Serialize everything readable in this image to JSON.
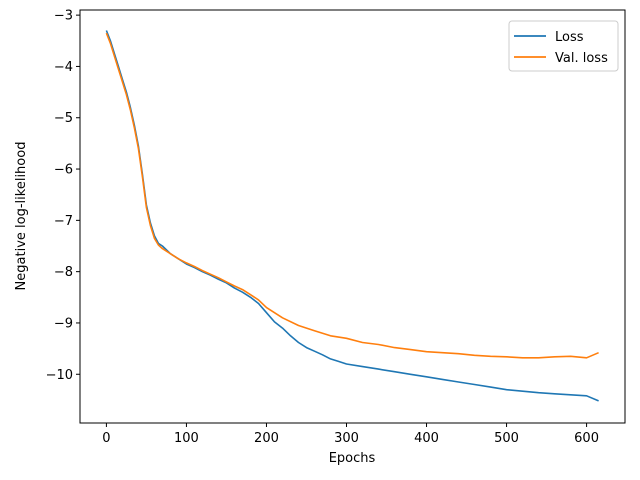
{
  "chart_data": {
    "type": "line",
    "title": "",
    "xlabel": "Epochs",
    "ylabel": "Negative log-likelihood",
    "xlim": [
      -33,
      648
    ],
    "ylim": [
      -10.95,
      -2.9
    ],
    "xticks": [
      0,
      100,
      200,
      300,
      400,
      500,
      600
    ],
    "yticks": [
      -10,
      -9,
      -8,
      -7,
      -6,
      -5,
      -4,
      -3
    ],
    "ytick_labels": [
      "−10",
      "−9",
      "−8",
      "−7",
      "−6",
      "−5",
      "−4",
      "−3"
    ],
    "grid": false,
    "legend_position": "top-right",
    "series": [
      {
        "name": "Loss",
        "color": "#1f77b4",
        "points": [
          [
            0,
            -3.3
          ],
          [
            5,
            -3.5
          ],
          [
            10,
            -3.75
          ],
          [
            15,
            -4.0
          ],
          [
            20,
            -4.25
          ],
          [
            25,
            -4.5
          ],
          [
            30,
            -4.8
          ],
          [
            35,
            -5.15
          ],
          [
            40,
            -5.55
          ],
          [
            45,
            -6.1
          ],
          [
            50,
            -6.7
          ],
          [
            55,
            -7.05
          ],
          [
            60,
            -7.3
          ],
          [
            65,
            -7.45
          ],
          [
            70,
            -7.5
          ],
          [
            80,
            -7.65
          ],
          [
            90,
            -7.75
          ],
          [
            100,
            -7.85
          ],
          [
            110,
            -7.92
          ],
          [
            120,
            -8.0
          ],
          [
            130,
            -8.07
          ],
          [
            140,
            -8.15
          ],
          [
            150,
            -8.22
          ],
          [
            160,
            -8.32
          ],
          [
            170,
            -8.4
          ],
          [
            180,
            -8.5
          ],
          [
            190,
            -8.62
          ],
          [
            200,
            -8.8
          ],
          [
            210,
            -8.98
          ],
          [
            220,
            -9.1
          ],
          [
            230,
            -9.25
          ],
          [
            240,
            -9.38
          ],
          [
            250,
            -9.48
          ],
          [
            260,
            -9.55
          ],
          [
            270,
            -9.62
          ],
          [
            280,
            -9.7
          ],
          [
            290,
            -9.75
          ],
          [
            300,
            -9.8
          ],
          [
            320,
            -9.85
          ],
          [
            340,
            -9.9
          ],
          [
            360,
            -9.95
          ],
          [
            380,
            -10.0
          ],
          [
            400,
            -10.05
          ],
          [
            420,
            -10.1
          ],
          [
            440,
            -10.15
          ],
          [
            460,
            -10.2
          ],
          [
            480,
            -10.25
          ],
          [
            500,
            -10.3
          ],
          [
            520,
            -10.33
          ],
          [
            540,
            -10.36
          ],
          [
            560,
            -10.38
          ],
          [
            580,
            -10.4
          ],
          [
            600,
            -10.42
          ],
          [
            615,
            -10.52
          ]
        ]
      },
      {
        "name": "Val. loss",
        "color": "#ff7f0e",
        "points": [
          [
            0,
            -3.35
          ],
          [
            5,
            -3.55
          ],
          [
            10,
            -3.8
          ],
          [
            15,
            -4.05
          ],
          [
            20,
            -4.3
          ],
          [
            25,
            -4.55
          ],
          [
            30,
            -4.85
          ],
          [
            35,
            -5.2
          ],
          [
            40,
            -5.6
          ],
          [
            45,
            -6.15
          ],
          [
            50,
            -6.75
          ],
          [
            55,
            -7.1
          ],
          [
            60,
            -7.35
          ],
          [
            65,
            -7.48
          ],
          [
            70,
            -7.55
          ],
          [
            80,
            -7.65
          ],
          [
            90,
            -7.75
          ],
          [
            100,
            -7.83
          ],
          [
            110,
            -7.9
          ],
          [
            120,
            -7.98
          ],
          [
            130,
            -8.05
          ],
          [
            140,
            -8.12
          ],
          [
            150,
            -8.2
          ],
          [
            160,
            -8.28
          ],
          [
            170,
            -8.35
          ],
          [
            180,
            -8.45
          ],
          [
            190,
            -8.55
          ],
          [
            200,
            -8.7
          ],
          [
            220,
            -8.9
          ],
          [
            240,
            -9.05
          ],
          [
            260,
            -9.15
          ],
          [
            280,
            -9.25
          ],
          [
            300,
            -9.3
          ],
          [
            320,
            -9.38
          ],
          [
            340,
            -9.42
          ],
          [
            360,
            -9.48
          ],
          [
            380,
            -9.52
          ],
          [
            400,
            -9.56
          ],
          [
            420,
            -9.58
          ],
          [
            440,
            -9.6
          ],
          [
            460,
            -9.63
          ],
          [
            480,
            -9.65
          ],
          [
            500,
            -9.66
          ],
          [
            520,
            -9.68
          ],
          [
            540,
            -9.68
          ],
          [
            560,
            -9.66
          ],
          [
            580,
            -9.65
          ],
          [
            600,
            -9.68
          ],
          [
            615,
            -9.58
          ]
        ]
      }
    ]
  }
}
